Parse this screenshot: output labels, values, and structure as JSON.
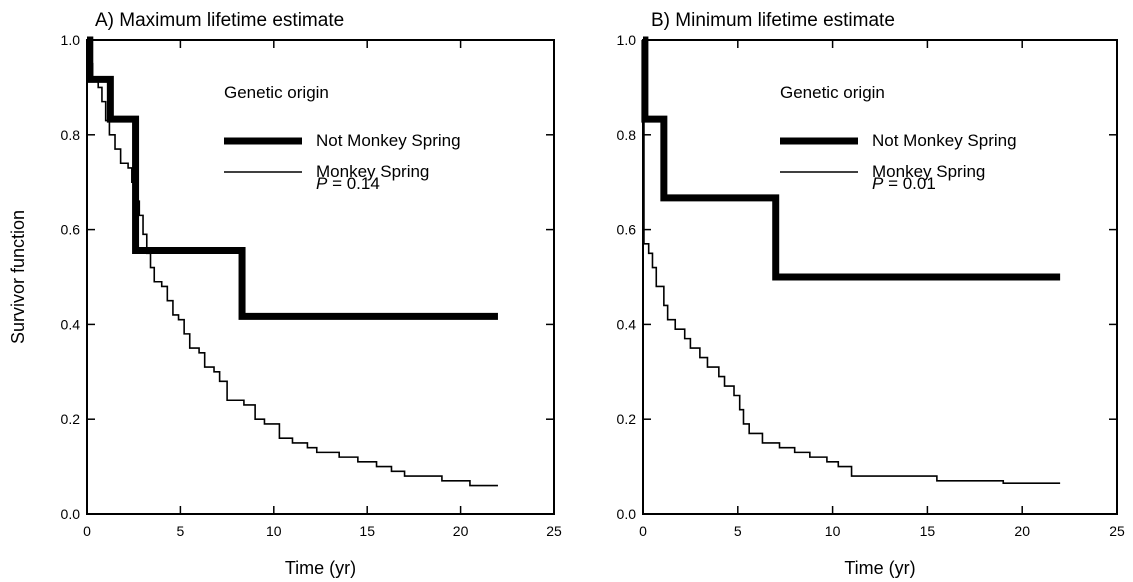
{
  "chart_data": [
    {
      "type": "line",
      "step": true,
      "title": "A) Maximum lifetime estimate",
      "xlabel": "Time (yr)",
      "ylabel": "Survivor function",
      "xlim": [
        0,
        25
      ],
      "ylim": [
        0,
        1
      ],
      "xticks": [
        "0",
        "5",
        "10",
        "15",
        "20",
        "25"
      ],
      "yticks": [
        "0.0",
        "0.2",
        "0.4",
        "0.6",
        "0.8",
        "1.0"
      ],
      "grid": false,
      "legend": {
        "title": "Genetic origin",
        "placement": "top-right",
        "entries": [
          "Not Monkey Spring",
          "Monkey Spring"
        ],
        "p_label": "P",
        "p_text": " = 0.14"
      },
      "series": [
        {
          "name": "Not Monkey Spring",
          "line": "thick",
          "points": [
            [
              0,
              1.0
            ],
            [
              0.15,
              0.917
            ],
            [
              1.25,
              0.833
            ],
            [
              2.6,
              0.556
            ],
            [
              8.3,
              0.417
            ],
            [
              22,
              0.417
            ]
          ]
        },
        {
          "name": "Monkey Spring",
          "line": "thin",
          "points": [
            [
              0,
              1.0
            ],
            [
              0.1,
              0.95
            ],
            [
              0.3,
              0.92
            ],
            [
              0.6,
              0.9
            ],
            [
              0.8,
              0.87
            ],
            [
              1.0,
              0.83
            ],
            [
              1.2,
              0.8
            ],
            [
              1.5,
              0.77
            ],
            [
              1.8,
              0.74
            ],
            [
              2.2,
              0.73
            ],
            [
              2.4,
              0.7
            ],
            [
              2.6,
              0.66
            ],
            [
              2.8,
              0.63
            ],
            [
              3.0,
              0.59
            ],
            [
              3.2,
              0.55
            ],
            [
              3.4,
              0.52
            ],
            [
              3.6,
              0.49
            ],
            [
              4.0,
              0.48
            ],
            [
              4.3,
              0.45
            ],
            [
              4.6,
              0.42
            ],
            [
              4.9,
              0.41
            ],
            [
              5.2,
              0.38
            ],
            [
              5.5,
              0.35
            ],
            [
              6.0,
              0.34
            ],
            [
              6.3,
              0.31
            ],
            [
              6.8,
              0.3
            ],
            [
              7.1,
              0.28
            ],
            [
              7.5,
              0.24
            ],
            [
              8.4,
              0.23
            ],
            [
              9.0,
              0.2
            ],
            [
              9.5,
              0.19
            ],
            [
              10.3,
              0.16
            ],
            [
              11.0,
              0.15
            ],
            [
              11.8,
              0.14
            ],
            [
              12.3,
              0.13
            ],
            [
              13.5,
              0.12
            ],
            [
              14.5,
              0.11
            ],
            [
              15.5,
              0.1
            ],
            [
              16.3,
              0.09
            ],
            [
              17.0,
              0.08
            ],
            [
              19.0,
              0.07
            ],
            [
              20.5,
              0.06
            ],
            [
              22,
              0.06
            ]
          ]
        }
      ]
    },
    {
      "type": "line",
      "step": true,
      "title": "B) Minimum lifetime estimate",
      "xlabel": "Time (yr)",
      "ylabel": "",
      "xlim": [
        0,
        25
      ],
      "ylim": [
        0,
        1
      ],
      "xticks": [
        "0",
        "5",
        "10",
        "15",
        "20",
        "25"
      ],
      "yticks": [
        "0.0",
        "0.2",
        "0.4",
        "0.6",
        "0.8",
        "1.0"
      ],
      "grid": false,
      "legend": {
        "title": "Genetic origin",
        "placement": "top-right",
        "entries": [
          "Not Monkey Spring",
          "Monkey Spring"
        ],
        "p_label": "P",
        "p_text": " = 0.01"
      },
      "series": [
        {
          "name": "Not Monkey Spring",
          "line": "thick",
          "points": [
            [
              0,
              1.0
            ],
            [
              0.1,
              0.833
            ],
            [
              1.1,
              0.667
            ],
            [
              7.0,
              0.5
            ],
            [
              22,
              0.5
            ]
          ]
        },
        {
          "name": "Monkey Spring",
          "line": "thin",
          "points": [
            [
              0,
              1.0
            ],
            [
              0.05,
              0.57
            ],
            [
              0.3,
              0.55
            ],
            [
              0.5,
              0.52
            ],
            [
              0.7,
              0.48
            ],
            [
              1.1,
              0.44
            ],
            [
              1.3,
              0.41
            ],
            [
              1.7,
              0.39
            ],
            [
              2.2,
              0.37
            ],
            [
              2.5,
              0.35
            ],
            [
              3.0,
              0.33
            ],
            [
              3.4,
              0.31
            ],
            [
              4.0,
              0.29
            ],
            [
              4.3,
              0.27
            ],
            [
              4.8,
              0.25
            ],
            [
              5.1,
              0.22
            ],
            [
              5.3,
              0.19
            ],
            [
              5.6,
              0.17
            ],
            [
              6.3,
              0.15
            ],
            [
              7.2,
              0.14
            ],
            [
              8.0,
              0.13
            ],
            [
              8.8,
              0.12
            ],
            [
              9.7,
              0.11
            ],
            [
              10.3,
              0.1
            ],
            [
              11.0,
              0.08
            ],
            [
              13.8,
              0.08
            ],
            [
              15.5,
              0.07
            ],
            [
              19.0,
              0.065
            ],
            [
              22,
              0.065
            ]
          ]
        }
      ]
    }
  ]
}
